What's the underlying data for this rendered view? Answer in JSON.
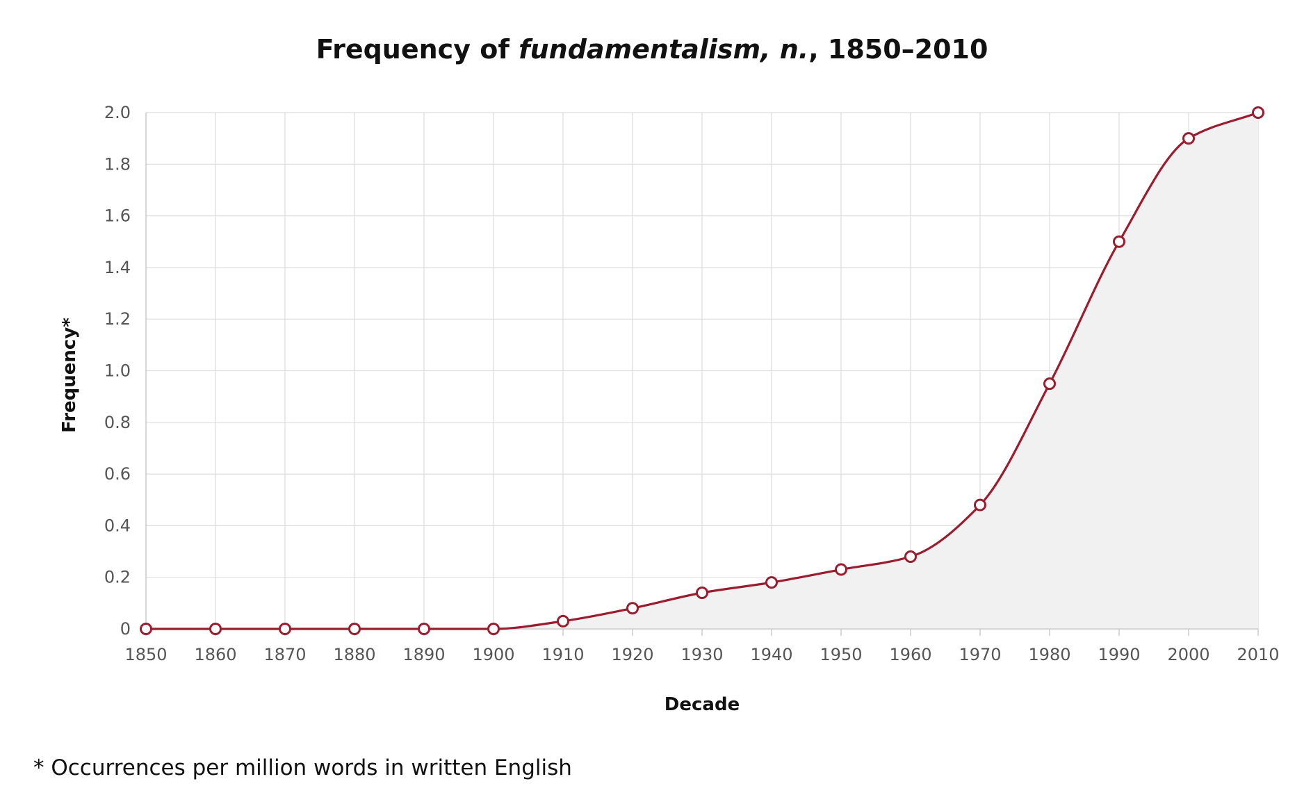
{
  "chart_data": {
    "type": "area",
    "title": {
      "prefix": "Frequency of ",
      "term": "fundamentalism, n.",
      "suffix": ", 1850–2010"
    },
    "xlabel": "Decade",
    "ylabel": "Frequency*",
    "x": [
      1850,
      1860,
      1870,
      1880,
      1890,
      1900,
      1910,
      1920,
      1930,
      1940,
      1950,
      1960,
      1970,
      1980,
      1990,
      2000,
      2010
    ],
    "x_tick_labels": [
      "1850",
      "1860",
      "1870",
      "1880",
      "1890",
      "1900",
      "1910",
      "1920",
      "1930",
      "1940",
      "1950",
      "1960",
      "1970",
      "1980",
      "1990",
      "2000",
      "2010"
    ],
    "series": [
      {
        "name": "fundamentalism, n.",
        "values": [
          0,
          0,
          0,
          0,
          0,
          0,
          0.03,
          0.08,
          0.14,
          0.18,
          0.23,
          0.28,
          0.48,
          0.95,
          1.5,
          1.9,
          2.0
        ]
      }
    ],
    "y_ticks": [
      0,
      0.2,
      0.4,
      0.6,
      0.8,
      1.0,
      1.2,
      1.4,
      1.6,
      1.8,
      2.0
    ],
    "y_tick_labels": [
      "0",
      "0.2",
      "0.4",
      "0.6",
      "0.8",
      "1.0",
      "1.2",
      "1.4",
      "1.6",
      "1.8",
      "2.0"
    ],
    "xlim": [
      1850,
      2010
    ],
    "ylim": [
      0,
      2.0
    ],
    "grid": true,
    "legend": "none",
    "footnote": "* Occurrences per million words in written English",
    "colors": {
      "line": "#9b1c2e",
      "area": "#f1f1f1",
      "marker_fill": "#ffffff",
      "grid": "#dddddd"
    }
  }
}
